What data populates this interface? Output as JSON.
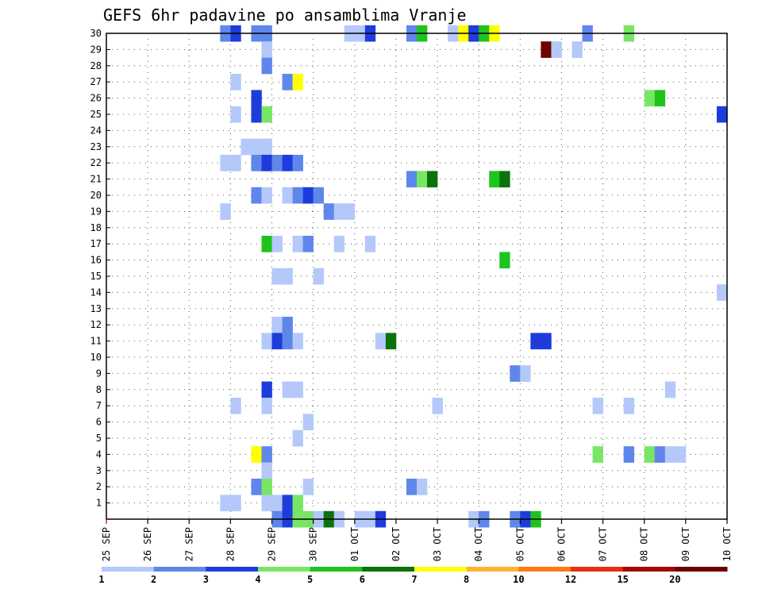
{
  "chart_data": {
    "type": "heatmap",
    "title": "GEFS 6hr padavine po ansamblima Vranje",
    "x_ticks": [
      "25 SEP",
      "26 SEP",
      "27 SEP",
      "28 SEP",
      "29 SEP",
      "30 SEP",
      "01 OCT",
      "02 OCT",
      "03 OCT",
      "04 OCT",
      "05 OCT",
      "06 OCT",
      "07 OCT",
      "08 OCT",
      "09 OCT",
      "10 OCT"
    ],
    "y_ticks": [
      "1",
      "2",
      "3",
      "4",
      "5",
      "6",
      "7",
      "8",
      "9",
      "10",
      "11",
      "12",
      "13",
      "14",
      "15",
      "16",
      "17",
      "18",
      "19",
      "20",
      "21",
      "22",
      "23",
      "24",
      "25",
      "26",
      "27",
      "28",
      "29",
      "30"
    ],
    "x_unit": "days since 25 SEP (6-hour steps)",
    "y_range": [
      0,
      30
    ],
    "grid": true,
    "legend": {
      "position": "bottom",
      "labels": [
        "1",
        "2",
        "3",
        "4",
        "5",
        "6",
        "7",
        "8",
        "10",
        "12",
        "15",
        "20"
      ],
      "colors": [
        "#b4c8fa",
        "#5f87eb",
        "#1e3cdc",
        "#78e664",
        "#1ec31e",
        "#0a730a",
        "#ffff00",
        "#ffb432",
        "#ff7814",
        "#e13214",
        "#a00a0a",
        "#6e0000"
      ]
    },
    "cells": [
      {
        "d": 2.75,
        "m": 30,
        "v": 2
      },
      {
        "d": 3.0,
        "m": 30,
        "v": 3
      },
      {
        "d": 3.5,
        "m": 30,
        "v": 2
      },
      {
        "d": 3.75,
        "m": 30,
        "v": 2
      },
      {
        "d": 5.75,
        "m": 30,
        "v": 1
      },
      {
        "d": 6.0,
        "m": 30,
        "v": 1
      },
      {
        "d": 6.25,
        "m": 30,
        "v": 3
      },
      {
        "d": 7.25,
        "m": 30,
        "v": 2
      },
      {
        "d": 7.5,
        "m": 30,
        "v": 5
      },
      {
        "d": 8.25,
        "m": 30,
        "v": 1
      },
      {
        "d": 8.5,
        "m": 30,
        "v": 7
      },
      {
        "d": 8.75,
        "m": 30,
        "v": 3
      },
      {
        "d": 9.0,
        "m": 30,
        "v": 5
      },
      {
        "d": 9.25,
        "m": 30,
        "v": 7
      },
      {
        "d": 11.5,
        "m": 30,
        "v": 2
      },
      {
        "d": 12.5,
        "m": 30,
        "v": 4
      },
      {
        "d": 3.75,
        "m": 29,
        "v": 1
      },
      {
        "d": 10.5,
        "m": 29,
        "v": 15
      },
      {
        "d": 10.75,
        "m": 29,
        "v": 1
      },
      {
        "d": 11.25,
        "m": 29,
        "v": 1
      },
      {
        "d": 3.75,
        "m": 28,
        "v": 2
      },
      {
        "d": 3.0,
        "m": 27,
        "v": 1
      },
      {
        "d": 4.25,
        "m": 27,
        "v": 2
      },
      {
        "d": 4.5,
        "m": 27,
        "v": 7
      },
      {
        "d": 3.5,
        "m": 26,
        "v": 3
      },
      {
        "d": 13.0,
        "m": 26,
        "v": 4
      },
      {
        "d": 13.25,
        "m": 26,
        "v": 5
      },
      {
        "d": 3.0,
        "m": 25,
        "v": 1
      },
      {
        "d": 3.5,
        "m": 25,
        "v": 3
      },
      {
        "d": 3.75,
        "m": 25,
        "v": 4
      },
      {
        "d": 14.75,
        "m": 25,
        "v": 3
      },
      {
        "d": 3.25,
        "m": 23,
        "v": 1
      },
      {
        "d": 3.5,
        "m": 23,
        "v": 1
      },
      {
        "d": 3.75,
        "m": 23,
        "v": 1
      },
      {
        "d": 2.75,
        "m": 22,
        "v": 1
      },
      {
        "d": 3.0,
        "m": 22,
        "v": 1
      },
      {
        "d": 3.5,
        "m": 22,
        "v": 2
      },
      {
        "d": 3.75,
        "m": 22,
        "v": 3
      },
      {
        "d": 4.0,
        "m": 22,
        "v": 2
      },
      {
        "d": 4.25,
        "m": 22,
        "v": 3
      },
      {
        "d": 4.5,
        "m": 22,
        "v": 2
      },
      {
        "d": 7.25,
        "m": 21,
        "v": 2
      },
      {
        "d": 7.5,
        "m": 21,
        "v": 4
      },
      {
        "d": 7.75,
        "m": 21,
        "v": 6
      },
      {
        "d": 9.25,
        "m": 21,
        "v": 5
      },
      {
        "d": 9.5,
        "m": 21,
        "v": 6
      },
      {
        "d": 3.5,
        "m": 20,
        "v": 2
      },
      {
        "d": 3.75,
        "m": 20,
        "v": 1
      },
      {
        "d": 4.25,
        "m": 20,
        "v": 1
      },
      {
        "d": 4.5,
        "m": 20,
        "v": 2
      },
      {
        "d": 4.75,
        "m": 20,
        "v": 3
      },
      {
        "d": 5.0,
        "m": 20,
        "v": 2
      },
      {
        "d": 2.75,
        "m": 19,
        "v": 1
      },
      {
        "d": 5.25,
        "m": 19,
        "v": 2
      },
      {
        "d": 5.5,
        "m": 19,
        "v": 1
      },
      {
        "d": 5.75,
        "m": 19,
        "v": 1
      },
      {
        "d": 3.75,
        "m": 17,
        "v": 5
      },
      {
        "d": 4.0,
        "m": 17,
        "v": 1
      },
      {
        "d": 4.5,
        "m": 17,
        "v": 1
      },
      {
        "d": 4.75,
        "m": 17,
        "v": 2
      },
      {
        "d": 5.5,
        "m": 17,
        "v": 1
      },
      {
        "d": 6.25,
        "m": 17,
        "v": 1
      },
      {
        "d": 9.5,
        "m": 16,
        "v": 5
      },
      {
        "d": 4.0,
        "m": 15,
        "v": 1
      },
      {
        "d": 4.25,
        "m": 15,
        "v": 1
      },
      {
        "d": 5.0,
        "m": 15,
        "v": 1
      },
      {
        "d": 14.75,
        "m": 14,
        "v": 1
      },
      {
        "d": 4.0,
        "m": 12,
        "v": 1
      },
      {
        "d": 4.25,
        "m": 12,
        "v": 2
      },
      {
        "d": 3.75,
        "m": 11,
        "v": 1
      },
      {
        "d": 4.0,
        "m": 11,
        "v": 3
      },
      {
        "d": 4.25,
        "m": 11,
        "v": 2
      },
      {
        "d": 4.5,
        "m": 11,
        "v": 1
      },
      {
        "d": 6.5,
        "m": 11,
        "v": 1
      },
      {
        "d": 6.75,
        "m": 11,
        "v": 6
      },
      {
        "d": 10.25,
        "m": 11,
        "v": 3
      },
      {
        "d": 10.5,
        "m": 11,
        "v": 3
      },
      {
        "d": 9.75,
        "m": 9,
        "v": 2
      },
      {
        "d": 10.0,
        "m": 9,
        "v": 1
      },
      {
        "d": 3.75,
        "m": 8,
        "v": 3
      },
      {
        "d": 4.25,
        "m": 8,
        "v": 1
      },
      {
        "d": 4.5,
        "m": 8,
        "v": 1
      },
      {
        "d": 13.5,
        "m": 8,
        "v": 1
      },
      {
        "d": 3.0,
        "m": 7,
        "v": 1
      },
      {
        "d": 3.75,
        "m": 7,
        "v": 1
      },
      {
        "d": 7.875,
        "m": 7,
        "v": 1
      },
      {
        "d": 11.75,
        "m": 7,
        "v": 1
      },
      {
        "d": 12.5,
        "m": 7,
        "v": 1
      },
      {
        "d": 4.75,
        "m": 6,
        "v": 1
      },
      {
        "d": 4.5,
        "m": 5,
        "v": 1
      },
      {
        "d": 3.5,
        "m": 4,
        "v": 7
      },
      {
        "d": 3.75,
        "m": 4,
        "v": 2
      },
      {
        "d": 11.75,
        "m": 4,
        "v": 4
      },
      {
        "d": 12.5,
        "m": 4,
        "v": 2
      },
      {
        "d": 13.0,
        "m": 4,
        "v": 4
      },
      {
        "d": 13.25,
        "m": 4,
        "v": 2
      },
      {
        "d": 13.5,
        "m": 4,
        "v": 1
      },
      {
        "d": 13.75,
        "m": 4,
        "v": 1
      },
      {
        "d": 3.75,
        "m": 3,
        "v": 1
      },
      {
        "d": 3.5,
        "m": 2,
        "v": 2
      },
      {
        "d": 3.75,
        "m": 2,
        "v": 4
      },
      {
        "d": 4.75,
        "m": 2,
        "v": 1
      },
      {
        "d": 7.25,
        "m": 2,
        "v": 2
      },
      {
        "d": 7.5,
        "m": 2,
        "v": 1
      },
      {
        "d": 2.75,
        "m": 1,
        "v": 1
      },
      {
        "d": 3.0,
        "m": 1,
        "v": 1
      },
      {
        "d": 3.75,
        "m": 1,
        "v": 1
      },
      {
        "d": 4.0,
        "m": 1,
        "v": 1
      },
      {
        "d": 4.25,
        "m": 1,
        "v": 3
      },
      {
        "d": 4.5,
        "m": 1,
        "v": 4
      },
      {
        "d": 4.0,
        "m": 0,
        "v": 2
      },
      {
        "d": 4.25,
        "m": 0,
        "v": 3
      },
      {
        "d": 4.5,
        "m": 0,
        "v": 4
      },
      {
        "d": 4.75,
        "m": 0,
        "v": 4
      },
      {
        "d": 5.0,
        "m": 0,
        "v": 1
      },
      {
        "d": 5.25,
        "m": 0,
        "v": 6
      },
      {
        "d": 5.5,
        "m": 0,
        "v": 1
      },
      {
        "d": 6.0,
        "m": 0,
        "v": 1
      },
      {
        "d": 6.25,
        "m": 0,
        "v": 1
      },
      {
        "d": 6.5,
        "m": 0,
        "v": 3
      },
      {
        "d": 8.75,
        "m": 0,
        "v": 1
      },
      {
        "d": 9.0,
        "m": 0,
        "v": 2
      },
      {
        "d": 9.75,
        "m": 0,
        "v": 2
      },
      {
        "d": 10.0,
        "m": 0,
        "v": 3
      },
      {
        "d": 10.25,
        "m": 0,
        "v": 5
      }
    ]
  }
}
